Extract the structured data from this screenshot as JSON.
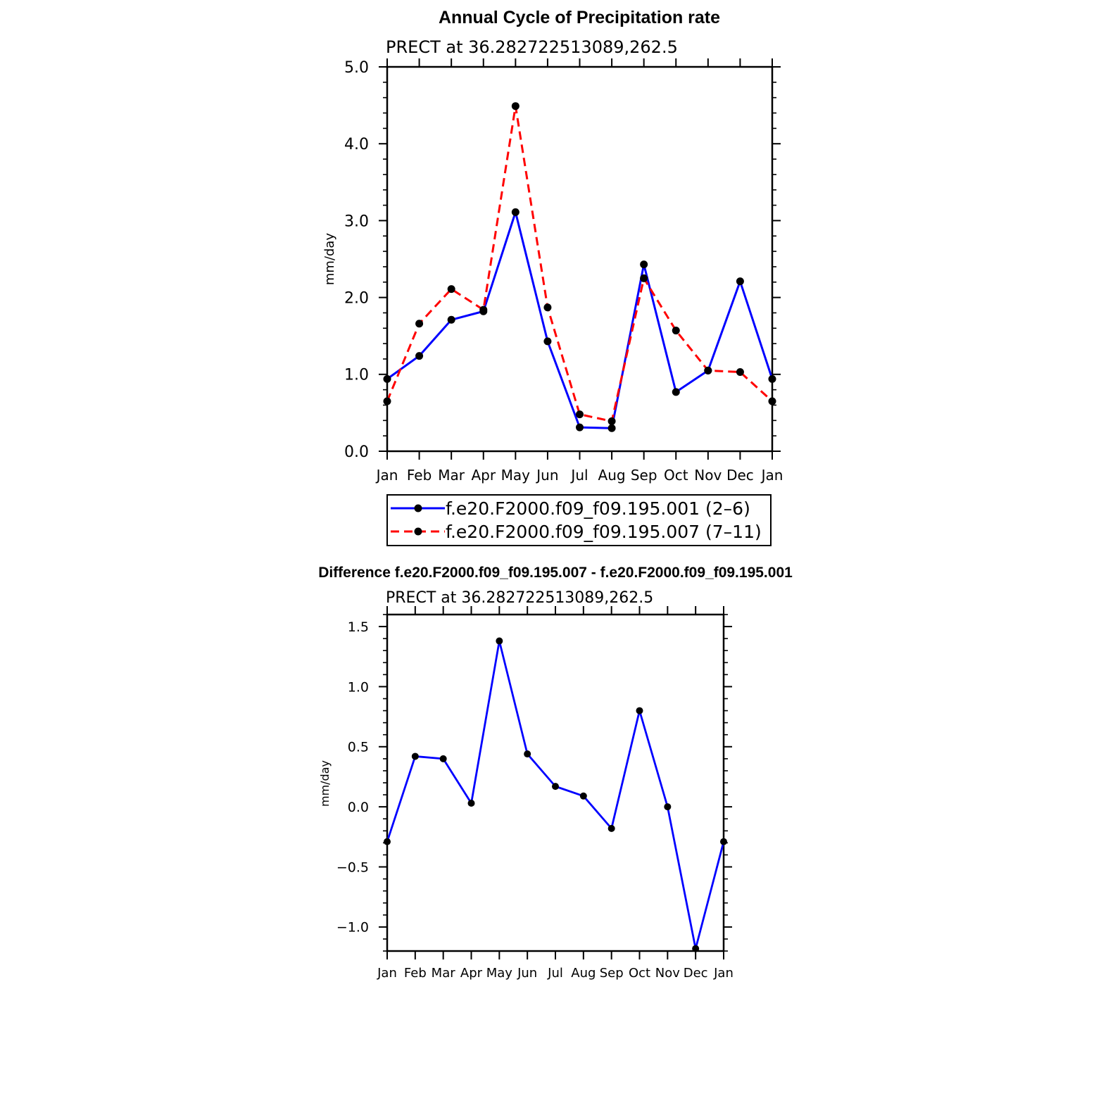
{
  "chart_data": [
    {
      "type": "line",
      "title": "Annual Cycle of Precipitation rate",
      "subtitle": "PRECT at 36.282722513089,262.5",
      "xlabel": "",
      "ylabel": "mm/day",
      "categories": [
        "Jan",
        "Feb",
        "Mar",
        "Apr",
        "May",
        "Jun",
        "Jul",
        "Aug",
        "Sep",
        "Oct",
        "Nov",
        "Dec",
        "Jan"
      ],
      "ylim": [
        0,
        5
      ],
      "yticks": [
        0,
        1,
        2,
        3,
        4,
        5
      ],
      "ytick_labels": [
        "0.0",
        "1.0",
        "2.0",
        "3.0",
        "4.0",
        "5.0"
      ],
      "grid": false,
      "legend_position": "bottom",
      "series": [
        {
          "name": "f.e20.F2000.f09_f09.195.001 (2–6)",
          "color": "#0000ff",
          "dash": "solid",
          "values": [
            0.94,
            1.24,
            1.71,
            1.82,
            3.11,
            1.43,
            0.31,
            0.3,
            2.43,
            0.77,
            1.05,
            2.21,
            0.94
          ]
        },
        {
          "name": "f.e20.F2000.f09_f09.195.007 (7–11)",
          "color": "#ff0000",
          "dash": "dashed",
          "values": [
            0.65,
            1.66,
            2.11,
            1.84,
            4.49,
            1.87,
            0.48,
            0.39,
            2.25,
            1.57,
            1.05,
            1.03,
            0.65
          ]
        }
      ]
    },
    {
      "type": "line",
      "title": "Difference f.e20.F2000.f09_f09.195.007 - f.e20.F2000.f09_f09.195.001",
      "subtitle": "PRECT at 36.282722513089,262.5",
      "xlabel": "",
      "ylabel": "mm/day",
      "categories": [
        "Jan",
        "Feb",
        "Mar",
        "Apr",
        "May",
        "Jun",
        "Jul",
        "Aug",
        "Sep",
        "Oct",
        "Nov",
        "Dec",
        "Jan"
      ],
      "ylim": [
        -1.2,
        1.6
      ],
      "yticks": [
        -1.0,
        -0.5,
        0.0,
        0.5,
        1.0,
        1.5
      ],
      "ytick_labels": [
        "−1.0",
        "−0.5",
        "0.0",
        "0.5",
        "1.0",
        "1.5"
      ],
      "grid": false,
      "series": [
        {
          "name": "Difference",
          "color": "#0000ff",
          "dash": "solid",
          "values": [
            -0.29,
            0.42,
            0.4,
            0.03,
            1.38,
            0.44,
            0.17,
            0.09,
            -0.18,
            0.8,
            0.0,
            -1.18,
            -0.29
          ]
        }
      ]
    }
  ]
}
